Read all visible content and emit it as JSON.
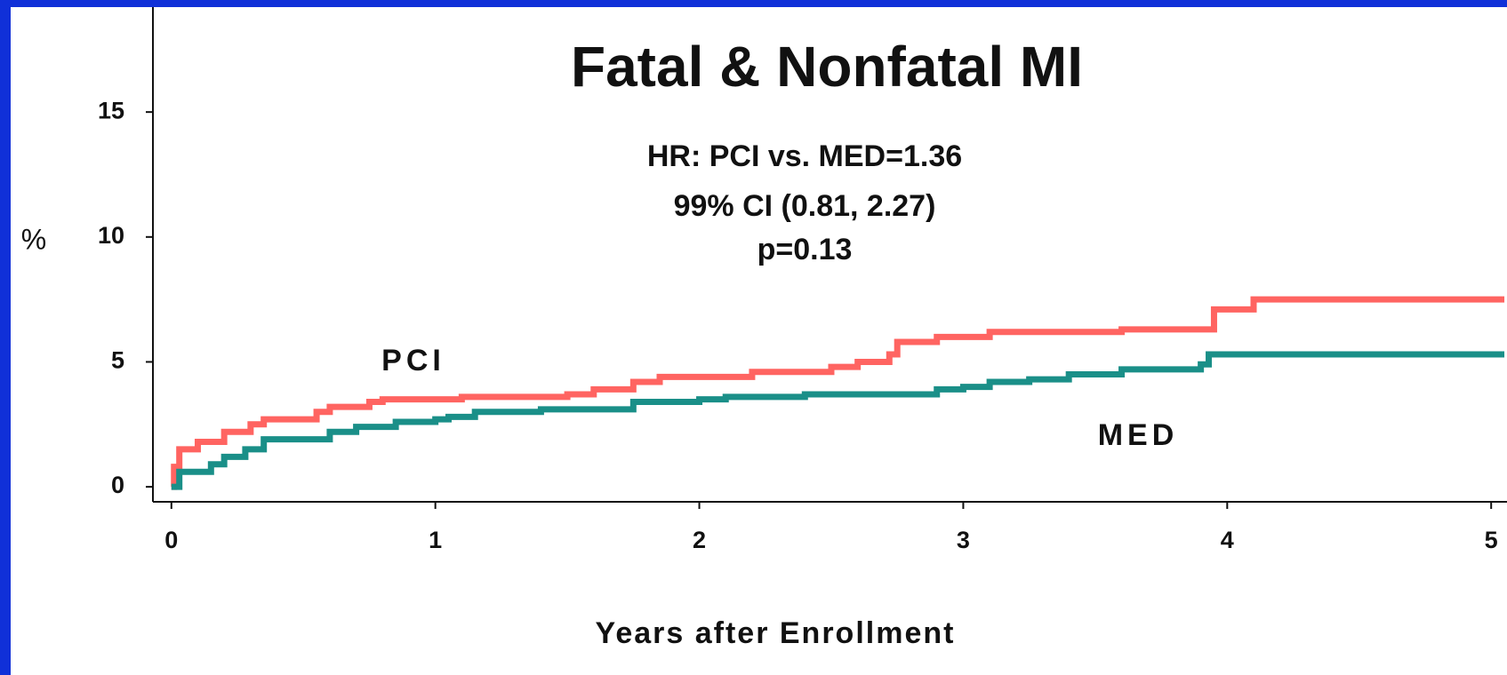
{
  "chart_data": {
    "type": "step",
    "title": "Fatal & Nonfatal MI",
    "annotations": [
      "HR: PCI vs. MED=1.36",
      "99% CI (0.81, 2.27)",
      "p=0.13"
    ],
    "ylabel": "%",
    "xlabel": "Years after Enrollment",
    "xlim": [
      -0.07,
      5.06
    ],
    "ylim": [
      -0.6,
      19.2
    ],
    "xticks": [
      0,
      1,
      2,
      3,
      4,
      5
    ],
    "yticks": [
      0,
      5,
      10,
      15
    ],
    "series": [
      {
        "name": "PCI",
        "color": "#ff6461",
        "x": [
          0,
          0.01,
          0.03,
          0.1,
          0.2,
          0.3,
          0.35,
          0.55,
          0.6,
          0.75,
          0.8,
          1.1,
          1.5,
          1.6,
          1.75,
          1.85,
          2.2,
          2.5,
          2.6,
          2.72,
          2.75,
          2.9,
          3.1,
          3.6,
          3.95,
          4.1,
          5.05
        ],
        "values": [
          0,
          0.8,
          1.5,
          1.8,
          2.2,
          2.5,
          2.7,
          3.0,
          3.2,
          3.4,
          3.5,
          3.6,
          3.7,
          3.9,
          4.2,
          4.4,
          4.6,
          4.8,
          5.0,
          5.3,
          5.8,
          6.0,
          6.2,
          6.3,
          7.1,
          7.5,
          7.5
        ]
      },
      {
        "name": "MED",
        "color": "#1a8f88",
        "x": [
          0,
          0.03,
          0.15,
          0.2,
          0.28,
          0.35,
          0.6,
          0.7,
          0.85,
          1.0,
          1.05,
          1.15,
          1.4,
          1.75,
          2.0,
          2.1,
          2.4,
          2.9,
          3.0,
          3.1,
          3.25,
          3.4,
          3.6,
          3.9,
          3.93,
          5.05
        ],
        "values": [
          0,
          0.6,
          0.9,
          1.2,
          1.5,
          1.9,
          2.2,
          2.4,
          2.6,
          2.7,
          2.8,
          3.0,
          3.1,
          3.4,
          3.5,
          3.6,
          3.7,
          3.9,
          4.0,
          4.2,
          4.3,
          4.5,
          4.7,
          4.9,
          5.3,
          5.3
        ]
      }
    ]
  }
}
